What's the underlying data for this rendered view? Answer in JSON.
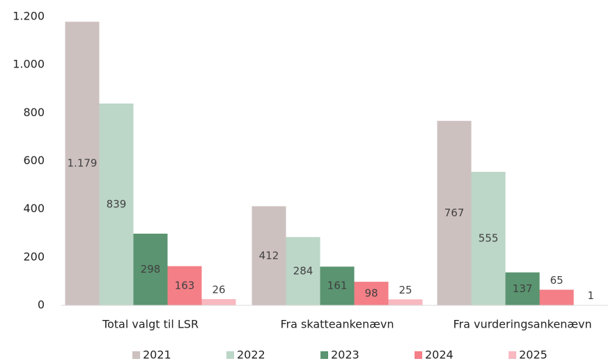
{
  "chart_data": {
    "type": "bar",
    "categories": [
      "Total valgt til LSR",
      "Fra skatteankenævn",
      "Fra vurderingsankenævn"
    ],
    "series": [
      {
        "name": "2021",
        "color": "#cdc1c0",
        "values": [
          1179,
          412,
          767
        ],
        "value_labels": [
          "1.179",
          "412",
          "767"
        ]
      },
      {
        "name": "2022",
        "color": "#bcd6c8",
        "values": [
          839,
          284,
          555
        ]
      },
      {
        "name": "2023",
        "color": "#5a9470",
        "values": [
          298,
          161,
          137
        ]
      },
      {
        "name": "2024",
        "color": "#f47f87",
        "values": [
          163,
          98,
          65
        ]
      },
      {
        "name": "2025",
        "color": "#f8b9c0",
        "values": [
          26,
          25,
          1
        ]
      }
    ],
    "ylim": [
      0,
      1200
    ],
    "yticks": [
      0,
      200,
      400,
      600,
      800,
      {
        "value": 1000,
        "label": "1.000"
      },
      {
        "value": 1200,
        "label": "1.200"
      }
    ],
    "legend": "bottom"
  }
}
